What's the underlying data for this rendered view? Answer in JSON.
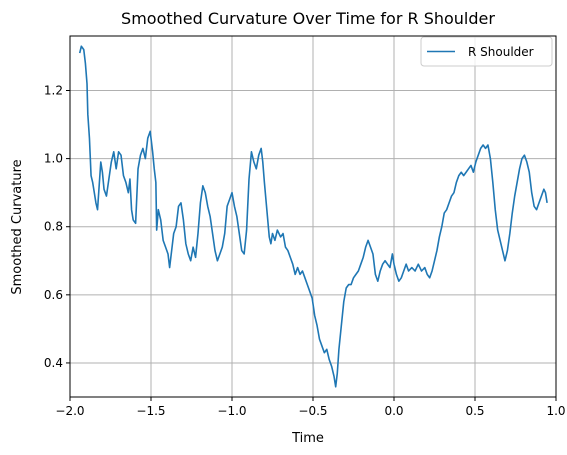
{
  "chart_data": {
    "type": "line",
    "title": "Smoothed Curvature Over Time for R Shoulder",
    "xlabel": "Time",
    "ylabel": "Smoothed Curvature",
    "xlim": [
      -2.0,
      1.0
    ],
    "ylim": [
      0.3,
      1.36
    ],
    "xticks": [
      -2.0,
      -1.5,
      -1.0,
      -0.5,
      0.0,
      0.5,
      1.0
    ],
    "xtick_labels": [
      "−2.0",
      "−1.5",
      "−1.0",
      "−0.5",
      "0.0",
      "0.5",
      "1.0"
    ],
    "yticks": [
      0.4,
      0.6,
      0.8,
      1.0,
      1.2
    ],
    "ytick_labels": [
      "0.4",
      "0.6",
      "0.8",
      "1.0",
      "1.2"
    ],
    "grid": true,
    "legend_position": "top-right",
    "series": [
      {
        "name": "R Shoulder",
        "color": "#1f77b4",
        "points": [
          [
            -1.94,
            1.31
          ],
          [
            -1.93,
            1.33
          ],
          [
            -1.915,
            1.32
          ],
          [
            -1.905,
            1.28
          ],
          [
            -1.895,
            1.22
          ],
          [
            -1.89,
            1.13
          ],
          [
            -1.88,
            1.06
          ],
          [
            -1.87,
            0.95
          ],
          [
            -1.86,
            0.93
          ],
          [
            -1.85,
            0.9
          ],
          [
            -1.84,
            0.87
          ],
          [
            -1.83,
            0.85
          ],
          [
            -1.82,
            0.92
          ],
          [
            -1.81,
            0.99
          ],
          [
            -1.8,
            0.96
          ],
          [
            -1.79,
            0.91
          ],
          [
            -1.775,
            0.89
          ],
          [
            -1.76,
            0.94
          ],
          [
            -1.745,
            0.99
          ],
          [
            -1.73,
            1.02
          ],
          [
            -1.715,
            0.97
          ],
          [
            -1.7,
            1.02
          ],
          [
            -1.685,
            1.01
          ],
          [
            -1.67,
            0.95
          ],
          [
            -1.655,
            0.93
          ],
          [
            -1.64,
            0.9
          ],
          [
            -1.63,
            0.94
          ],
          [
            -1.62,
            0.85
          ],
          [
            -1.61,
            0.82
          ],
          [
            -1.595,
            0.81
          ],
          [
            -1.58,
            0.97
          ],
          [
            -1.565,
            1.01
          ],
          [
            -1.55,
            1.03
          ],
          [
            -1.535,
            1.0
          ],
          [
            -1.52,
            1.06
          ],
          [
            -1.505,
            1.08
          ],
          [
            -1.49,
            1.02
          ],
          [
            -1.48,
            0.97
          ],
          [
            -1.47,
            0.93
          ],
          [
            -1.465,
            0.79
          ],
          [
            -1.455,
            0.85
          ],
          [
            -1.44,
            0.82
          ],
          [
            -1.425,
            0.76
          ],
          [
            -1.41,
            0.74
          ],
          [
            -1.395,
            0.72
          ],
          [
            -1.385,
            0.68
          ],
          [
            -1.375,
            0.72
          ],
          [
            -1.36,
            0.78
          ],
          [
            -1.345,
            0.8
          ],
          [
            -1.33,
            0.86
          ],
          [
            -1.315,
            0.87
          ],
          [
            -1.3,
            0.82
          ],
          [
            -1.285,
            0.75
          ],
          [
            -1.27,
            0.72
          ],
          [
            -1.255,
            0.7
          ],
          [
            -1.24,
            0.74
          ],
          [
            -1.225,
            0.71
          ],
          [
            -1.21,
            0.78
          ],
          [
            -1.195,
            0.87
          ],
          [
            -1.18,
            0.92
          ],
          [
            -1.165,
            0.9
          ],
          [
            -1.15,
            0.86
          ],
          [
            -1.135,
            0.83
          ],
          [
            -1.12,
            0.78
          ],
          [
            -1.105,
            0.73
          ],
          [
            -1.09,
            0.7
          ],
          [
            -1.075,
            0.72
          ],
          [
            -1.06,
            0.74
          ],
          [
            -1.045,
            0.78
          ],
          [
            -1.03,
            0.86
          ],
          [
            -1.015,
            0.88
          ],
          [
            -1.0,
            0.9
          ],
          [
            -0.985,
            0.86
          ],
          [
            -0.97,
            0.83
          ],
          [
            -0.955,
            0.78
          ],
          [
            -0.94,
            0.73
          ],
          [
            -0.925,
            0.72
          ],
          [
            -0.91,
            0.79
          ],
          [
            -0.895,
            0.94
          ],
          [
            -0.88,
            1.02
          ],
          [
            -0.865,
            0.99
          ],
          [
            -0.85,
            0.97
          ],
          [
            -0.835,
            1.01
          ],
          [
            -0.82,
            1.03
          ],
          [
            -0.81,
            0.99
          ],
          [
            -0.8,
            0.93
          ],
          [
            -0.785,
            0.85
          ],
          [
            -0.77,
            0.77
          ],
          [
            -0.76,
            0.75
          ],
          [
            -0.75,
            0.78
          ],
          [
            -0.735,
            0.76
          ],
          [
            -0.72,
            0.79
          ],
          [
            -0.7,
            0.77
          ],
          [
            -0.685,
            0.78
          ],
          [
            -0.67,
            0.74
          ],
          [
            -0.655,
            0.73
          ],
          [
            -0.64,
            0.71
          ],
          [
            -0.625,
            0.69
          ],
          [
            -0.61,
            0.66
          ],
          [
            -0.595,
            0.68
          ],
          [
            -0.58,
            0.66
          ],
          [
            -0.565,
            0.67
          ],
          [
            -0.55,
            0.65
          ],
          [
            -0.535,
            0.63
          ],
          [
            -0.52,
            0.61
          ],
          [
            -0.505,
            0.59
          ],
          [
            -0.49,
            0.54
          ],
          [
            -0.475,
            0.51
          ],
          [
            -0.46,
            0.47
          ],
          [
            -0.445,
            0.45
          ],
          [
            -0.43,
            0.43
          ],
          [
            -0.415,
            0.44
          ],
          [
            -0.4,
            0.41
          ],
          [
            -0.385,
            0.39
          ],
          [
            -0.37,
            0.36
          ],
          [
            -0.36,
            0.33
          ],
          [
            -0.35,
            0.37
          ],
          [
            -0.34,
            0.44
          ],
          [
            -0.325,
            0.51
          ],
          [
            -0.31,
            0.58
          ],
          [
            -0.295,
            0.62
          ],
          [
            -0.28,
            0.63
          ],
          [
            -0.265,
            0.63
          ],
          [
            -0.25,
            0.65
          ],
          [
            -0.235,
            0.66
          ],
          [
            -0.22,
            0.67
          ],
          [
            -0.205,
            0.69
          ],
          [
            -0.19,
            0.71
          ],
          [
            -0.175,
            0.74
          ],
          [
            -0.16,
            0.76
          ],
          [
            -0.145,
            0.74
          ],
          [
            -0.13,
            0.72
          ],
          [
            -0.115,
            0.66
          ],
          [
            -0.1,
            0.64
          ],
          [
            -0.085,
            0.67
          ],
          [
            -0.07,
            0.69
          ],
          [
            -0.055,
            0.7
          ],
          [
            -0.04,
            0.69
          ],
          [
            -0.025,
            0.68
          ],
          [
            -0.01,
            0.72
          ],
          [
            0.0,
            0.69
          ],
          [
            0.015,
            0.66
          ],
          [
            0.03,
            0.64
          ],
          [
            0.045,
            0.65
          ],
          [
            0.06,
            0.67
          ],
          [
            0.075,
            0.69
          ],
          [
            0.09,
            0.67
          ],
          [
            0.11,
            0.68
          ],
          [
            0.13,
            0.67
          ],
          [
            0.15,
            0.69
          ],
          [
            0.17,
            0.67
          ],
          [
            0.19,
            0.68
          ],
          [
            0.205,
            0.66
          ],
          [
            0.22,
            0.65
          ],
          [
            0.235,
            0.67
          ],
          [
            0.25,
            0.7
          ],
          [
            0.265,
            0.73
          ],
          [
            0.28,
            0.77
          ],
          [
            0.295,
            0.8
          ],
          [
            0.31,
            0.84
          ],
          [
            0.325,
            0.85
          ],
          [
            0.34,
            0.87
          ],
          [
            0.355,
            0.89
          ],
          [
            0.37,
            0.9
          ],
          [
            0.385,
            0.93
          ],
          [
            0.4,
            0.95
          ],
          [
            0.415,
            0.96
          ],
          [
            0.43,
            0.95
          ],
          [
            0.445,
            0.96
          ],
          [
            0.46,
            0.97
          ],
          [
            0.475,
            0.98
          ],
          [
            0.49,
            0.96
          ],
          [
            0.505,
            0.99
          ],
          [
            0.52,
            1.01
          ],
          [
            0.535,
            1.03
          ],
          [
            0.55,
            1.04
          ],
          [
            0.565,
            1.03
          ],
          [
            0.58,
            1.04
          ],
          [
            0.595,
            1.0
          ],
          [
            0.61,
            0.93
          ],
          [
            0.625,
            0.85
          ],
          [
            0.64,
            0.79
          ],
          [
            0.655,
            0.76
          ],
          [
            0.67,
            0.73
          ],
          [
            0.685,
            0.7
          ],
          [
            0.7,
            0.73
          ],
          [
            0.715,
            0.78
          ],
          [
            0.73,
            0.84
          ],
          [
            0.745,
            0.89
          ],
          [
            0.76,
            0.93
          ],
          [
            0.775,
            0.97
          ],
          [
            0.79,
            1.0
          ],
          [
            0.805,
            1.01
          ],
          [
            0.82,
            0.99
          ],
          [
            0.835,
            0.96
          ],
          [
            0.85,
            0.9
          ],
          [
            0.865,
            0.86
          ],
          [
            0.88,
            0.85
          ],
          [
            0.895,
            0.87
          ],
          [
            0.91,
            0.89
          ],
          [
            0.925,
            0.91
          ],
          [
            0.935,
            0.9
          ],
          [
            0.945,
            0.87
          ]
        ]
      }
    ]
  }
}
